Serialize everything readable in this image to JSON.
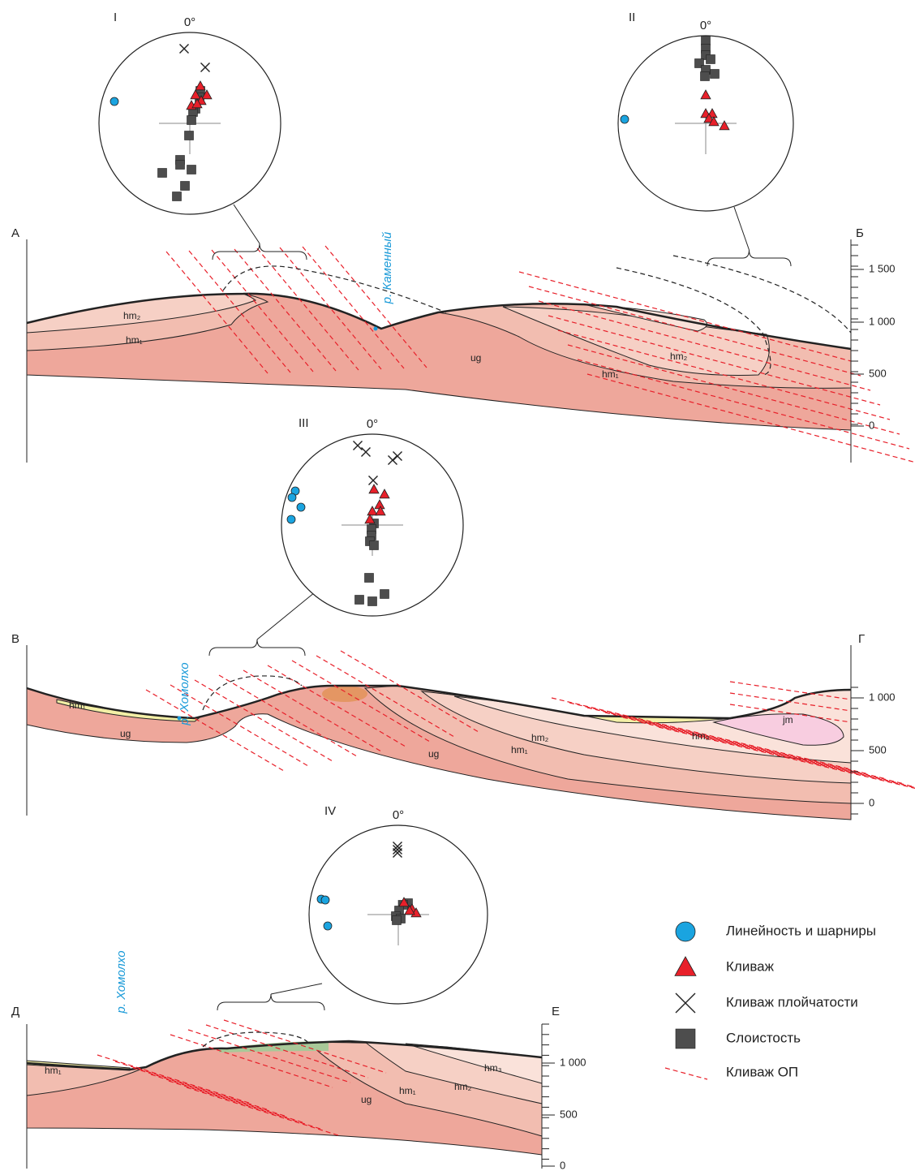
{
  "stereonets": [
    {
      "label": "I",
      "north": "0°"
    },
    {
      "label": "II",
      "north": "0°"
    },
    {
      "label": "III",
      "north": "0°"
    },
    {
      "label": "IV",
      "north": "0°"
    }
  ],
  "sections": [
    {
      "start": "А",
      "end": "Б",
      "river": "р. Каменный",
      "units": [
        "hm₂",
        "hm₁",
        "ug",
        "hm₂",
        "hm₁"
      ],
      "scale": [
        "1 500",
        "1 000",
        "500",
        "0"
      ]
    },
    {
      "start": "В",
      "end": "Г",
      "river": "р. Хомолхо",
      "units": [
        "hm₁",
        "ug",
        "hm₂",
        "hm₁",
        "ug",
        "hm₃",
        "jm"
      ],
      "scale": [
        "1 000",
        "500",
        "0"
      ]
    },
    {
      "start": "Д",
      "end": "Е",
      "river": "р. Хомолхо",
      "units": [
        "hm₁",
        "ug",
        "hm₁",
        "hm₂",
        "hm₃"
      ],
      "scale": [
        "1 000",
        "500",
        "0"
      ]
    }
  ],
  "legend": [
    "Линейность и шарниры",
    "Кливаж",
    "Кливаж плойчатости",
    "Слоистость",
    "Кливаж ОП"
  ]
}
